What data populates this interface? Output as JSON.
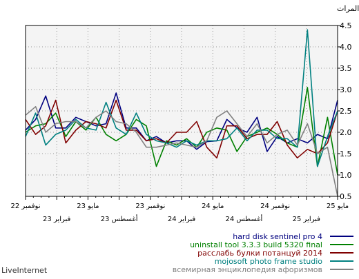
{
  "chart_data": {
    "type": "line",
    "ylabel": "المرات",
    "ylim": [
      0.5,
      4.5
    ],
    "yticks": [
      0.5,
      1.0,
      1.5,
      2.0,
      2.5,
      3.0,
      3.5,
      4.0,
      4.5
    ],
    "ytick_labels": [
      "0.5",
      "1.0",
      "1.5",
      "2.0",
      "2.5",
      "3.0",
      "3.5",
      "4.0",
      "4.5"
    ],
    "x_count": 32,
    "xticks_top": [
      {
        "i": 0,
        "label": "مايو 25"
      },
      {
        "i": 8,
        "label": "نوفمبر 24"
      },
      {
        "i": 16,
        "label": "مايو 24"
      },
      {
        "i": 24,
        "label": "نوفمبر 23"
      },
      {
        "i": 32,
        "label": "مايو 23"
      },
      {
        "i": 40,
        "label": "نوفمبر 22"
      }
    ],
    "xticks_bottom": [
      {
        "i": 4,
        "label": "فبراير 25"
      },
      {
        "i": 12,
        "label": "أغسطس 24"
      },
      {
        "i": 20,
        "label": "فبراير 24"
      },
      {
        "i": 28,
        "label": "أغسطس 23"
      },
      {
        "i": 36,
        "label": "فبراير 23"
      }
    ],
    "grid": true,
    "legend_position": "bottom-right",
    "series": [
      {
        "name": "hard disk sentinel pro 4",
        "color": "#00007f",
        "values": [
          2.75,
          1.85,
          1.95,
          1.75,
          1.85,
          1.75,
          1.9,
          1.55,
          2.35,
          2.0,
          2.1,
          2.3,
          1.8,
          1.78,
          1.6,
          1.8,
          1.8,
          1.75,
          1.9,
          1.8,
          2.1,
          2.1,
          2.92,
          2.2,
          2.15,
          2.25,
          2.35,
          2.1,
          2.1,
          2.85,
          2.3,
          2.05
        ]
      },
      {
        "name": "uninstall tool 3.3.3 build 5320 final",
        "color": "#008000",
        "values": [
          1.0,
          2.35,
          1.2,
          3.05,
          1.65,
          1.75,
          1.95,
          2.1,
          2.0,
          1.9,
          1.55,
          2.05,
          2.1,
          2.0,
          1.65,
          1.85,
          1.7,
          1.8,
          1.2,
          2.15,
          2.3,
          1.95,
          1.8,
          1.95,
          2.35,
          2.05,
          2.25,
          1.9,
          2.45,
          2.2,
          2.15,
          2.0
        ]
      },
      {
        "name": "расслабь булки потанцуй 2014",
        "color": "#800000",
        "values": [
          2.5,
          1.75,
          1.5,
          1.6,
          1.4,
          1.7,
          2.25,
          1.95,
          1.95,
          1.85,
          2.15,
          2.15,
          1.4,
          1.65,
          2.25,
          2.0,
          2.0,
          1.75,
          1.85,
          1.8,
          2.05,
          2.05,
          2.75,
          2.1,
          2.2,
          2.25,
          2.05,
          1.75,
          2.75,
          2.15,
          1.95,
          2.3
        ]
      },
      {
        "name": "mojosoft photo frame studio",
        "color": "#008080",
        "values": [
          2.5,
          1.9,
          1.2,
          4.4,
          1.65,
          1.85,
          1.85,
          2.05,
          2.05,
          1.8,
          2.1,
          1.85,
          1.8,
          1.8,
          1.7,
          1.8,
          1.65,
          1.75,
          1.8,
          1.95,
          2.45,
          1.95,
          2.1,
          2.7,
          2.05,
          2.1,
          2.3,
          2.05,
          1.95,
          1.7,
          2.45,
          1.9
        ]
      },
      {
        "name": "всемирная энциклопедия афоризмов",
        "color": "#808080",
        "values": [
          0.5,
          1.65,
          1.5,
          2.2,
          1.7,
          2.05,
          1.95,
          1.75,
          2.2,
          1.9,
          2.2,
          2.5,
          2.35,
          1.8,
          1.65,
          1.7,
          1.75,
          1.7,
          1.65,
          1.65,
          2.0,
          2.2,
          2.25,
          2.5,
          2.35,
          2.1,
          2.25,
          2.25,
          2.2,
          2.0,
          2.6,
          2.4
        ]
      }
    ]
  },
  "brand": "LiveInternet"
}
